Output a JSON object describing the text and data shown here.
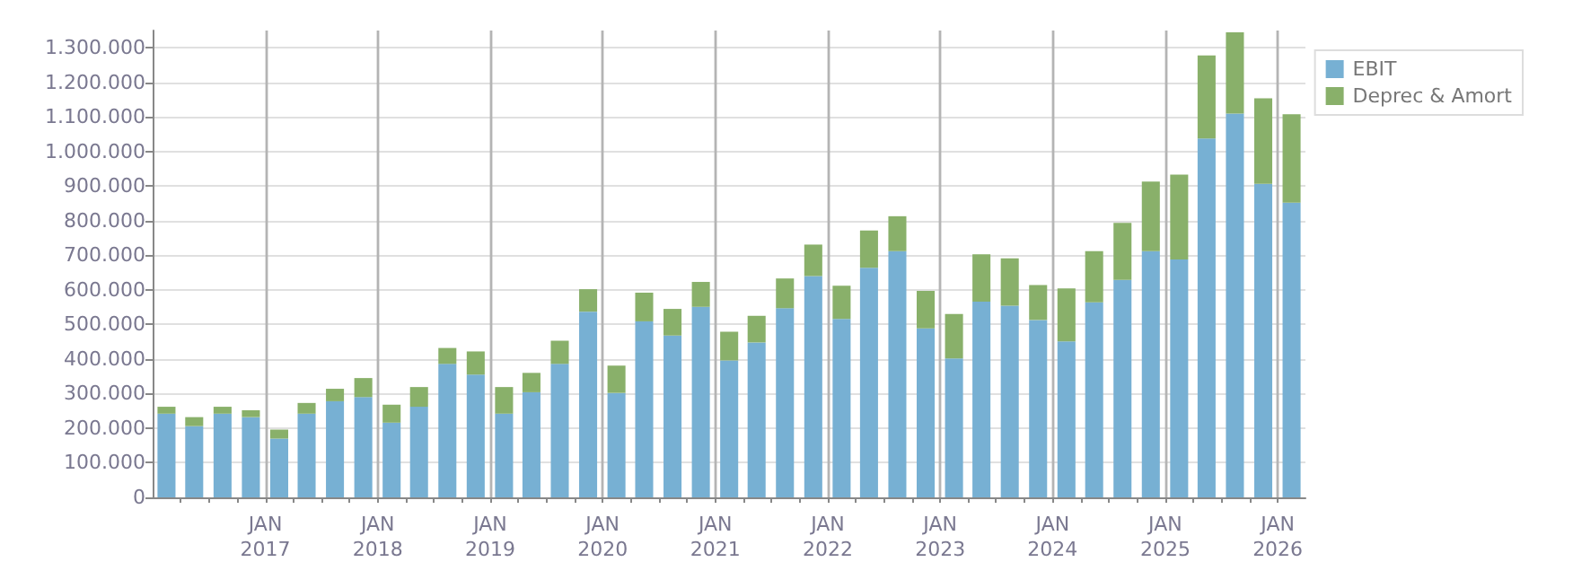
{
  "chart_data": {
    "type": "bar",
    "stacked": true,
    "grid": true,
    "legend": "top right",
    "x": [
      "2016-02-15",
      "2016-05-15",
      "2016-08-15",
      "2016-11-15",
      "2017-02-15",
      "2017-05-15",
      "2017-08-15",
      "2017-11-15",
      "2018-02-15",
      "2018-05-15",
      "2018-08-15",
      "2018-11-15",
      "2019-02-15",
      "2019-05-15",
      "2019-08-15",
      "2019-11-15",
      "2020-02-15",
      "2020-05-15",
      "2020-08-15",
      "2020-11-15",
      "2021-02-15",
      "2021-05-15",
      "2021-08-15",
      "2021-11-15",
      "2022-02-15",
      "2022-05-15",
      "2022-08-15",
      "2022-11-15",
      "2023-02-15",
      "2023-05-15",
      "2023-08-15",
      "2023-11-15",
      "2024-02-15",
      "2024-05-15",
      "2024-08-15",
      "2024-11-15",
      "2025-02-15",
      "2025-05-15",
      "2025-08-15",
      "2025-11-15",
      "2026-02-15"
    ],
    "series": [
      {
        "name": "EBIT",
        "color": "#77b0d3",
        "values": [
          242000,
          206000,
          242000,
          232000,
          170000,
          242000,
          278000,
          290000,
          216000,
          262000,
          386000,
          355000,
          242000,
          304000,
          386000,
          537000,
          302000,
          509000,
          468000,
          551000,
          396000,
          448000,
          547000,
          640000,
          516000,
          664000,
          712000,
          489000,
          402000,
          566000,
          554000,
          513000,
          451000,
          564000,
          629000,
          712000,
          688000,
          1038000,
          1110000,
          907000,
          852000
        ]
      },
      {
        "name": "Deprec & Amort",
        "color": "#89b06a",
        "values": [
          20000,
          26000,
          20000,
          20000,
          26000,
          31000,
          36000,
          55000,
          52000,
          57000,
          46000,
          67000,
          77000,
          56000,
          67000,
          65000,
          79000,
          83000,
          77000,
          72000,
          83000,
          77000,
          86000,
          91000,
          96000,
          108000,
          101000,
          108000,
          128000,
          137000,
          137000,
          101000,
          153000,
          148000,
          165000,
          201000,
          245000,
          240000,
          235000,
          247000,
          256000
        ]
      }
    ],
    "xlim": [
      "2016-01-01",
      "2026-04-01"
    ],
    "xticks": [
      {
        "value": "2016-04-01",
        "label": null
      },
      {
        "value": "2016-07-01",
        "label": null
      },
      {
        "value": "2016-10-01",
        "label": null
      },
      {
        "value": "2017-01-01",
        "label": "JAN\n2017"
      },
      {
        "value": "2017-04-01",
        "label": null
      },
      {
        "value": "2017-07-01",
        "label": null
      },
      {
        "value": "2017-10-01",
        "label": null
      },
      {
        "value": "2018-01-01",
        "label": "JAN\n2018"
      },
      {
        "value": "2018-04-01",
        "label": null
      },
      {
        "value": "2018-07-01",
        "label": null
      },
      {
        "value": "2018-10-01",
        "label": null
      },
      {
        "value": "2019-01-01",
        "label": "JAN\n2019"
      },
      {
        "value": "2019-04-01",
        "label": null
      },
      {
        "value": "2019-07-01",
        "label": null
      },
      {
        "value": "2019-10-01",
        "label": null
      },
      {
        "value": "2020-01-01",
        "label": "JAN\n2020"
      },
      {
        "value": "2020-04-01",
        "label": null
      },
      {
        "value": "2020-07-01",
        "label": null
      },
      {
        "value": "2020-10-01",
        "label": null
      },
      {
        "value": "2021-01-01",
        "label": "JAN\n2021"
      },
      {
        "value": "2021-04-01",
        "label": null
      },
      {
        "value": "2021-07-01",
        "label": null
      },
      {
        "value": "2021-10-01",
        "label": null
      },
      {
        "value": "2022-01-01",
        "label": "JAN\n2022"
      },
      {
        "value": "2022-04-01",
        "label": null
      },
      {
        "value": "2022-07-01",
        "label": null
      },
      {
        "value": "2022-10-01",
        "label": null
      },
      {
        "value": "2023-01-01",
        "label": "JAN\n2023"
      },
      {
        "value": "2023-04-01",
        "label": null
      },
      {
        "value": "2023-07-01",
        "label": null
      },
      {
        "value": "2023-10-01",
        "label": null
      },
      {
        "value": "2024-01-01",
        "label": "JAN\n2024"
      },
      {
        "value": "2024-04-01",
        "label": null
      },
      {
        "value": "2024-07-01",
        "label": null
      },
      {
        "value": "2024-10-01",
        "label": null
      },
      {
        "value": "2025-01-01",
        "label": "JAN\n2025"
      },
      {
        "value": "2025-04-01",
        "label": null
      },
      {
        "value": "2025-07-01",
        "label": null
      },
      {
        "value": "2025-10-01",
        "label": null
      },
      {
        "value": "2026-01-01",
        "label": "JAN\n2026"
      }
    ],
    "ylim": [
      0,
      1350000
    ],
    "yticks": [
      0,
      {
        "value": 100000,
        "label": "100.000"
      },
      {
        "value": 200000,
        "label": "200.000"
      },
      {
        "value": 300000,
        "label": "300.000"
      },
      {
        "value": 400000,
        "label": "400.000"
      },
      {
        "value": 500000,
        "label": "500.000"
      },
      {
        "value": 600000,
        "label": "600.000"
      },
      {
        "value": 700000,
        "label": "700.000"
      },
      {
        "value": 800000,
        "label": "800.000"
      },
      {
        "value": 900000,
        "label": "900.000"
      },
      {
        "value": 1000000,
        "label": "1.000.000"
      },
      {
        "value": 1100000,
        "label": "1.100.000"
      },
      {
        "value": 1200000,
        "label": "1.200.000"
      },
      {
        "value": 1300000,
        "label": "1.300.000"
      }
    ]
  }
}
